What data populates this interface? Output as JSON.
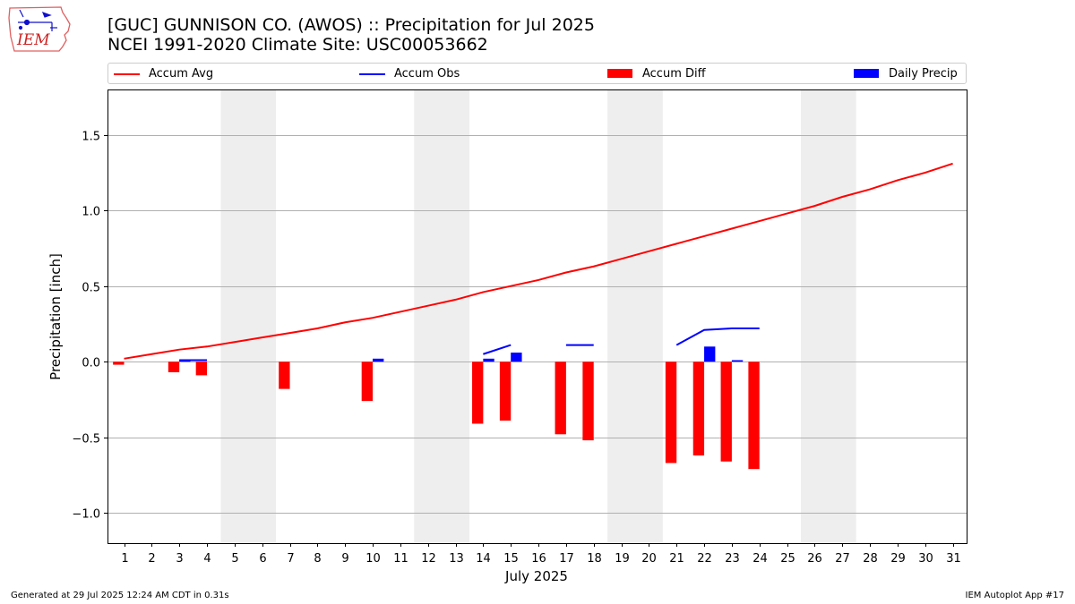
{
  "header": {
    "title_line1": "[GUC] GUNNISON CO. (AWOS) :: Precipitation for Jul 2025",
    "title_line2": "NCEI 1991-2020 Climate Site: USC00053662"
  },
  "logo": {
    "text": "IEM"
  },
  "legend": [
    {
      "label": "Accum Avg",
      "kind": "line",
      "color": "#ff0000"
    },
    {
      "label": "Accum Obs",
      "kind": "line",
      "color": "#0000ff"
    },
    {
      "label": "Accum Diff",
      "kind": "patch",
      "color": "#ff0000"
    },
    {
      "label": "Daily Precip",
      "kind": "patch",
      "color": "#0000ff"
    }
  ],
  "footer": {
    "generated": "Generated at 29 Jul 2025 12:24 AM CDT in 0.31s",
    "app": "IEM Autoplot App #17"
  },
  "chart_data": {
    "type": "bar",
    "xlabel": "July 2025",
    "ylabel": "Precipitation [inch]",
    "days": [
      1,
      2,
      3,
      4,
      5,
      6,
      7,
      8,
      9,
      10,
      11,
      12,
      13,
      14,
      15,
      16,
      17,
      18,
      19,
      20,
      21,
      22,
      23,
      24,
      25,
      26,
      27,
      28,
      29,
      30,
      31
    ],
    "ylim": [
      -1.2,
      1.8
    ],
    "yticks": [
      1.5,
      1.0,
      0.5,
      0.0,
      -0.5,
      -1.0
    ],
    "ytick_labels": [
      "1.5",
      "1.0",
      "0.5",
      "0.0",
      "−0.5",
      "−1.0"
    ],
    "grid": true,
    "legend_position": "top",
    "weekend_bands": [
      [
        5,
        6
      ],
      [
        12,
        13
      ],
      [
        19,
        20
      ],
      [
        26,
        27
      ]
    ],
    "accum_avg": [
      0.02,
      0.05,
      0.08,
      0.1,
      0.13,
      0.16,
      0.19,
      0.22,
      0.26,
      0.29,
      0.33,
      0.37,
      0.41,
      0.46,
      0.5,
      0.54,
      0.59,
      0.63,
      0.68,
      0.73,
      0.78,
      0.83,
      0.88,
      0.93,
      0.98,
      1.03,
      1.09,
      1.14,
      1.2,
      1.25,
      1.31
    ],
    "accum_obs": [
      {
        "days": [
          3,
          4
        ],
        "values": [
          0.01,
          0.01
        ]
      },
      {
        "days": [
          14,
          15
        ],
        "values": [
          0.05,
          0.11
        ]
      },
      {
        "days": [
          17,
          18
        ],
        "values": [
          0.11,
          0.11
        ]
      },
      {
        "days": [
          21,
          22,
          23,
          24
        ],
        "values": [
          0.11,
          0.21,
          0.22,
          0.22
        ]
      }
    ],
    "accum_diff": [
      {
        "day": 1,
        "value": -0.02
      },
      {
        "day": 3,
        "value": -0.07
      },
      {
        "day": 4,
        "value": -0.09
      },
      {
        "day": 7,
        "value": -0.18
      },
      {
        "day": 10,
        "value": -0.26
      },
      {
        "day": 14,
        "value": -0.41
      },
      {
        "day": 15,
        "value": -0.39
      },
      {
        "day": 17,
        "value": -0.48
      },
      {
        "day": 18,
        "value": -0.52
      },
      {
        "day": 21,
        "value": -0.67
      },
      {
        "day": 22,
        "value": -0.62
      },
      {
        "day": 23,
        "value": -0.66
      },
      {
        "day": 24,
        "value": -0.71
      }
    ],
    "daily_precip": [
      {
        "day": 3,
        "value": 0.01
      },
      {
        "day": 10,
        "value": 0.02
      },
      {
        "day": 14,
        "value": 0.02
      },
      {
        "day": 15,
        "value": 0.06
      },
      {
        "day": 22,
        "value": 0.1
      },
      {
        "day": 23,
        "value": 0.01
      }
    ]
  }
}
